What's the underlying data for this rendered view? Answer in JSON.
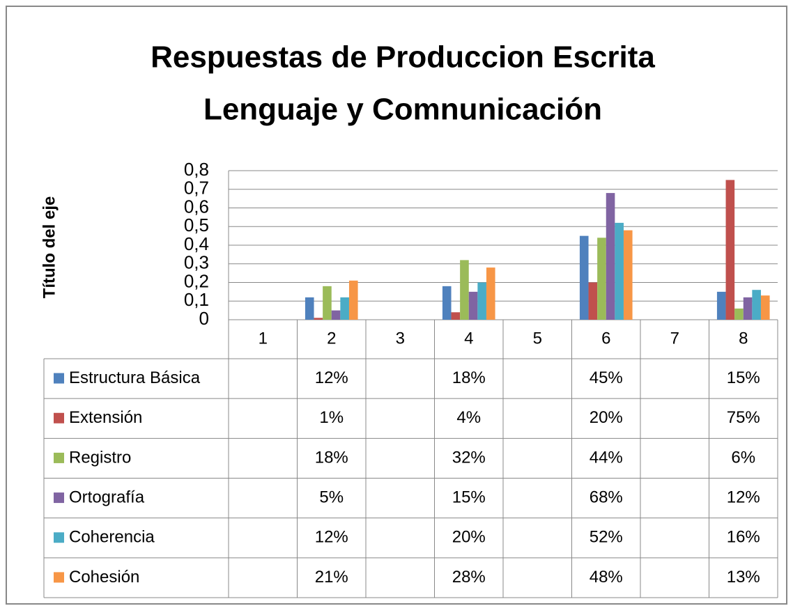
{
  "chart_data": {
    "type": "bar",
    "title": [
      "Respuestas de Produccion Escrita",
      "Lenguaje y Comnunicación"
    ],
    "y_label": "Título del eje",
    "categories": [
      "1",
      "2",
      "3",
      "4",
      "5",
      "6",
      "7",
      "8"
    ],
    "series": [
      {
        "name": "Estructura Básica",
        "color": "#4f81bd",
        "values": [
          null,
          0.12,
          null,
          0.18,
          null,
          0.45,
          null,
          0.15
        ],
        "value_labels": [
          null,
          "12%",
          null,
          "18%",
          null,
          "45%",
          null,
          "15%"
        ]
      },
      {
        "name": "Extensión",
        "color": "#c0504d",
        "values": [
          null,
          0.01,
          null,
          0.04,
          null,
          0.2,
          null,
          0.75
        ],
        "value_labels": [
          null,
          "1%",
          null,
          "4%",
          null,
          "20%",
          null,
          "75%"
        ]
      },
      {
        "name": "Registro",
        "color": "#9bbb59",
        "values": [
          null,
          0.18,
          null,
          0.32,
          null,
          0.44,
          null,
          0.06
        ],
        "value_labels": [
          null,
          "18%",
          null,
          "32%",
          null,
          "44%",
          null,
          "6%"
        ]
      },
      {
        "name": "Ortografía",
        "color": "#8064a2",
        "values": [
          null,
          0.05,
          null,
          0.15,
          null,
          0.68,
          null,
          0.12
        ],
        "value_labels": [
          null,
          "5%",
          null,
          "15%",
          null,
          "68%",
          null,
          "12%"
        ]
      },
      {
        "name": "Coherencia",
        "color": "#4bacc6",
        "values": [
          null,
          0.12,
          null,
          0.2,
          null,
          0.52,
          null,
          0.16
        ],
        "value_labels": [
          null,
          "12%",
          null,
          "20%",
          null,
          "52%",
          null,
          "16%"
        ]
      },
      {
        "name": "Cohesión",
        "color": "#f79646",
        "values": [
          null,
          0.21,
          null,
          0.28,
          null,
          0.48,
          null,
          0.13
        ],
        "value_labels": [
          null,
          "21%",
          null,
          "28%",
          null,
          "48%",
          null,
          "13%"
        ]
      }
    ],
    "ylim": [
      0,
      0.8
    ],
    "yticks": [
      0,
      {
        "value": 0.1,
        "label": "0,1"
      },
      {
        "value": 0.2,
        "label": "0,2"
      },
      {
        "value": 0.3,
        "label": "0,3"
      },
      {
        "value": 0.4,
        "label": "0,4"
      },
      {
        "value": 0.5,
        "label": "0,5"
      },
      {
        "value": 0.6,
        "label": "0,6"
      },
      {
        "value": 0.7,
        "label": "0,7"
      },
      {
        "value": 0.8,
        "label": "0,8"
      }
    ],
    "grid": true
  }
}
